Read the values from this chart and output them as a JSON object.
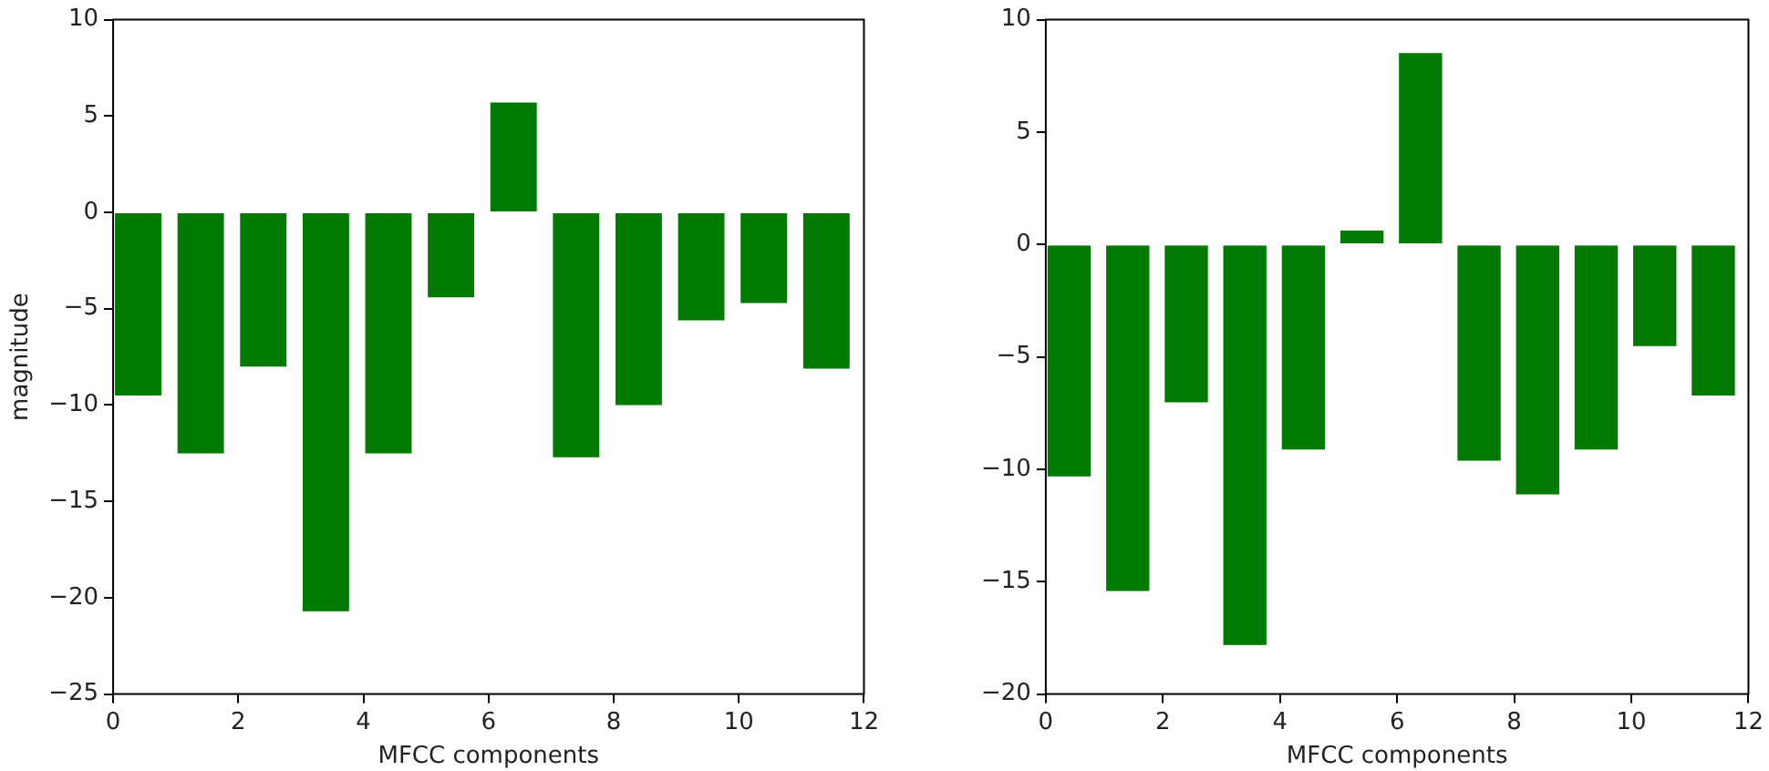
{
  "chart_data": [
    {
      "type": "bar",
      "xlabel": "MFCC components",
      "ylabel": "magnitude",
      "x": [
        0.4,
        1.4,
        2.4,
        3.4,
        4.4,
        5.4,
        6.4,
        7.4,
        8.4,
        9.4,
        10.4,
        11.4
      ],
      "values": [
        -9.6,
        -12.6,
        -8.1,
        -20.8,
        -12.6,
        -4.5,
        5.8,
        -12.8,
        -10.1,
        -5.7,
        -4.8,
        -8.2
      ],
      "color": "#007a00",
      "xlim": [
        0,
        12
      ],
      "xticks": [
        0,
        2,
        4,
        6,
        8,
        10,
        12
      ],
      "ylim": [
        -25,
        10
      ],
      "yticks": [
        -25,
        -20,
        -15,
        -10,
        -5,
        0,
        5,
        10
      ],
      "grid": false
    },
    {
      "type": "bar",
      "xlabel": "MFCC components",
      "x": [
        0.4,
        1.4,
        2.4,
        3.4,
        4.4,
        5.4,
        6.4,
        7.4,
        8.4,
        9.4,
        10.4,
        11.4
      ],
      "values": [
        -10.4,
        -15.5,
        -7.1,
        -17.9,
        -9.2,
        0.7,
        8.6,
        -9.7,
        -11.2,
        -9.2,
        -4.6,
        -6.8
      ],
      "color": "#007a00",
      "xlim": [
        0,
        12
      ],
      "xticks": [
        0,
        2,
        4,
        6,
        8,
        10,
        12
      ],
      "ylim": [
        -20,
        10
      ],
      "yticks": [
        -20,
        -15,
        -10,
        -5,
        0,
        5,
        10
      ],
      "grid": false
    }
  ]
}
